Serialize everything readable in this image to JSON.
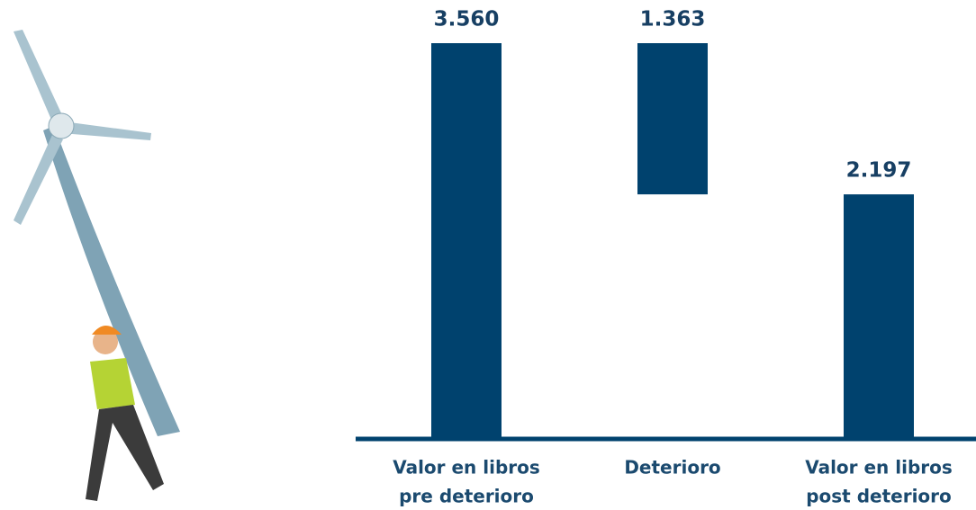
{
  "chart_data": {
    "type": "waterfall",
    "categories": [
      [
        "Valor en libros",
        "pre deterioro"
      ],
      [
        "Deterioro"
      ],
      [
        "Valor en libros",
        "post deterioro"
      ]
    ],
    "values": [
      3560,
      1363,
      2197
    ],
    "value_labels": [
      "3.560",
      "1.363",
      "2.197"
    ],
    "measures": [
      "absolute",
      "decrease",
      "total"
    ],
    "color": "#00426e"
  }
}
